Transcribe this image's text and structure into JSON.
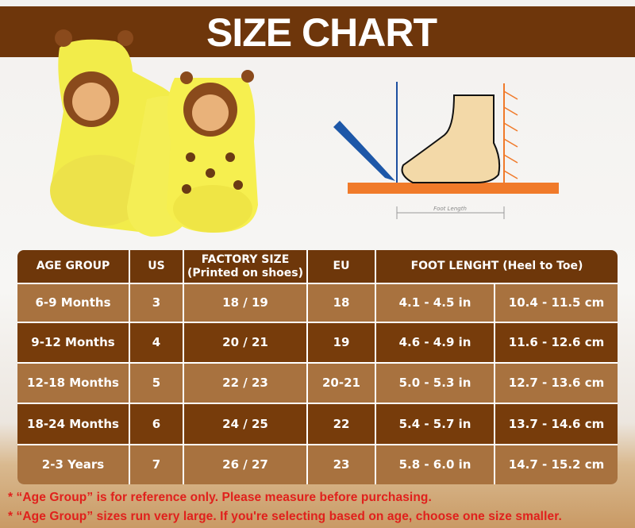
{
  "title": "SIZE CHART",
  "diagram": {
    "label": "Foot Length"
  },
  "table": {
    "headers": [
      "AGE GROUP",
      "US",
      "FACTORY SIZE",
      "(Printed on shoes)",
      "EU",
      "FOOT LENGHT (Heel to Toe)"
    ],
    "rows": [
      [
        "6-9 Months",
        "3",
        "18 / 19",
        "18",
        "4.1 - 4.5 in",
        "10.4 - 11.5 cm"
      ],
      [
        "9-12 Months",
        "4",
        "20 / 21",
        "19",
        "4.6 - 4.9 in",
        "11.6 - 12.6 cm"
      ],
      [
        "12-18 Months",
        "5",
        "22 / 23",
        "20-21",
        "5.0 - 5.3 in",
        "12.7 - 13.6 cm"
      ],
      [
        "18-24 Months",
        "6",
        "24 / 25",
        "22",
        "5.4 - 5.7 in",
        "13.7 - 14.6 cm"
      ],
      [
        "2-3 Years",
        "7",
        "26 / 27",
        "23",
        "5.8 - 6.0 in",
        "14.7 - 15.2 cm"
      ]
    ]
  },
  "notes": [
    "* “Age Group” is for reference only. Please measure before purchasing.",
    "* “Age Group” sizes run very large. If you're selecting based on age, choose one size smaller."
  ],
  "colors": {
    "header": "#6e370a",
    "row_light": "#a8723f",
    "row_dark": "#773c0b",
    "note": "#e0201c"
  }
}
